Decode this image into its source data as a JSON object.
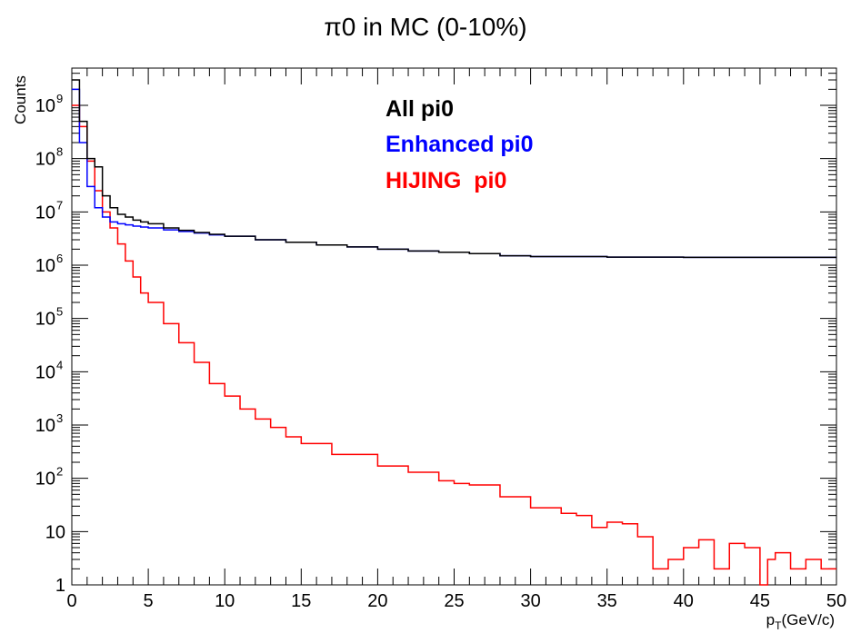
{
  "chart_data": {
    "type": "line",
    "title": "π0 in MC (0-10%)",
    "xlabel": "p_T(GeV/c)",
    "ylabel": "Counts",
    "xlim": [
      0,
      50
    ],
    "ylim": [
      1,
      5000000000
    ],
    "yscale": "log",
    "x_ticks": [
      {
        "value": 0,
        "label": "0"
      },
      {
        "value": 5,
        "label": "5"
      },
      {
        "value": 10,
        "label": "10"
      },
      {
        "value": 15,
        "label": "15"
      },
      {
        "value": 20,
        "label": "20"
      },
      {
        "value": 25,
        "label": "25"
      },
      {
        "value": 30,
        "label": "30"
      },
      {
        "value": 35,
        "label": "35"
      },
      {
        "value": 40,
        "label": "40"
      },
      {
        "value": 45,
        "label": "45"
      },
      {
        "value": 50,
        "label": "50"
      }
    ],
    "y_ticks": [
      {
        "value": 1,
        "label": "1"
      },
      {
        "value": 10,
        "label": "10"
      },
      {
        "value": 100,
        "base": "10",
        "exp": "2"
      },
      {
        "value": 1000,
        "base": "10",
        "exp": "3"
      },
      {
        "value": 10000,
        "base": "10",
        "exp": "4"
      },
      {
        "value": 100000,
        "base": "10",
        "exp": "5"
      },
      {
        "value": 1000000,
        "base": "10",
        "exp": "6"
      },
      {
        "value": 10000000,
        "base": "10",
        "exp": "7"
      },
      {
        "value": 100000000,
        "base": "10",
        "exp": "8"
      },
      {
        "value": 1000000000,
        "base": "10",
        "exp": "9"
      }
    ],
    "grid": false,
    "legend_position": "top-center",
    "series": [
      {
        "name": "All pi0",
        "color": "#000000",
        "points": [
          [
            0,
            3000000000
          ],
          [
            0.5,
            500000000
          ],
          [
            1,
            100000000
          ],
          [
            1.5,
            70000000
          ],
          [
            2,
            20000000
          ],
          [
            2.5,
            12000000
          ],
          [
            3,
            9000000
          ],
          [
            3.5,
            8000000
          ],
          [
            4,
            7000000
          ],
          [
            4.5,
            6500000
          ],
          [
            5,
            6000000
          ],
          [
            6,
            5000000
          ],
          [
            7,
            4500000
          ],
          [
            8,
            4100000
          ],
          [
            9,
            3800000
          ],
          [
            10,
            3500000
          ],
          [
            12,
            3000000
          ],
          [
            14,
            2700000
          ],
          [
            16,
            2400000
          ],
          [
            18,
            2200000
          ],
          [
            20,
            2000000
          ],
          [
            22,
            1850000
          ],
          [
            24,
            1750000
          ],
          [
            26,
            1650000
          ],
          [
            28,
            1500000
          ],
          [
            30,
            1450000
          ],
          [
            35,
            1420000
          ],
          [
            40,
            1400000
          ],
          [
            45,
            1400000
          ],
          [
            50,
            1400000
          ]
        ]
      },
      {
        "name": "Enhanced pi0",
        "color": "#0000ff",
        "points": [
          [
            0,
            2000000000
          ],
          [
            0.5,
            200000000
          ],
          [
            1,
            30000000
          ],
          [
            1.5,
            12000000
          ],
          [
            2,
            8000000
          ],
          [
            2.5,
            6500000
          ],
          [
            3,
            6000000
          ],
          [
            3.5,
            5700000
          ],
          [
            4,
            5400000
          ],
          [
            4.5,
            5200000
          ],
          [
            5,
            5000000
          ],
          [
            6,
            4600000
          ],
          [
            7,
            4300000
          ],
          [
            8,
            4000000
          ],
          [
            9,
            3700000
          ],
          [
            10,
            3500000
          ],
          [
            12,
            3000000
          ],
          [
            14,
            2700000
          ],
          [
            16,
            2400000
          ],
          [
            18,
            2200000
          ],
          [
            20,
            2000000
          ],
          [
            22,
            1850000
          ],
          [
            24,
            1750000
          ],
          [
            26,
            1650000
          ],
          [
            28,
            1500000
          ],
          [
            30,
            1450000
          ],
          [
            35,
            1420000
          ],
          [
            40,
            1400000
          ],
          [
            45,
            1400000
          ],
          [
            50,
            1400000
          ]
        ]
      },
      {
        "name": "HIJING  pi0",
        "color": "#ff0000",
        "points": [
          [
            0,
            1000000000
          ],
          [
            0.5,
            400000000
          ],
          [
            1,
            90000000
          ],
          [
            1.5,
            25000000
          ],
          [
            2,
            10000000
          ],
          [
            2.5,
            5000000
          ],
          [
            3,
            2500000
          ],
          [
            3.5,
            1200000
          ],
          [
            4,
            600000
          ],
          [
            4.5,
            300000
          ],
          [
            5,
            200000
          ],
          [
            6,
            80000
          ],
          [
            7,
            35000
          ],
          [
            8,
            15000
          ],
          [
            9,
            6000
          ],
          [
            10,
            3500
          ],
          [
            11,
            2000
          ],
          [
            12,
            1300
          ],
          [
            13,
            900
          ],
          [
            14,
            600
          ],
          [
            15,
            450
          ],
          [
            17,
            280
          ],
          [
            20,
            170
          ],
          [
            22,
            130
          ],
          [
            24,
            90
          ],
          [
            25,
            80
          ],
          [
            26,
            75
          ],
          [
            28,
            45
          ],
          [
            30,
            28
          ],
          [
            32,
            22
          ],
          [
            33,
            20
          ],
          [
            34,
            12
          ],
          [
            35,
            15
          ],
          [
            36,
            14
          ],
          [
            37,
            8
          ],
          [
            38,
            2
          ],
          [
            39,
            3
          ],
          [
            40,
            5
          ],
          [
            41,
            7
          ],
          [
            42,
            2
          ],
          [
            43,
            6
          ],
          [
            44,
            5
          ],
          [
            45,
            1
          ],
          [
            45.5,
            3
          ],
          [
            46,
            4
          ],
          [
            47,
            2
          ],
          [
            48,
            3
          ],
          [
            49,
            2
          ],
          [
            50,
            2
          ]
        ]
      }
    ]
  }
}
